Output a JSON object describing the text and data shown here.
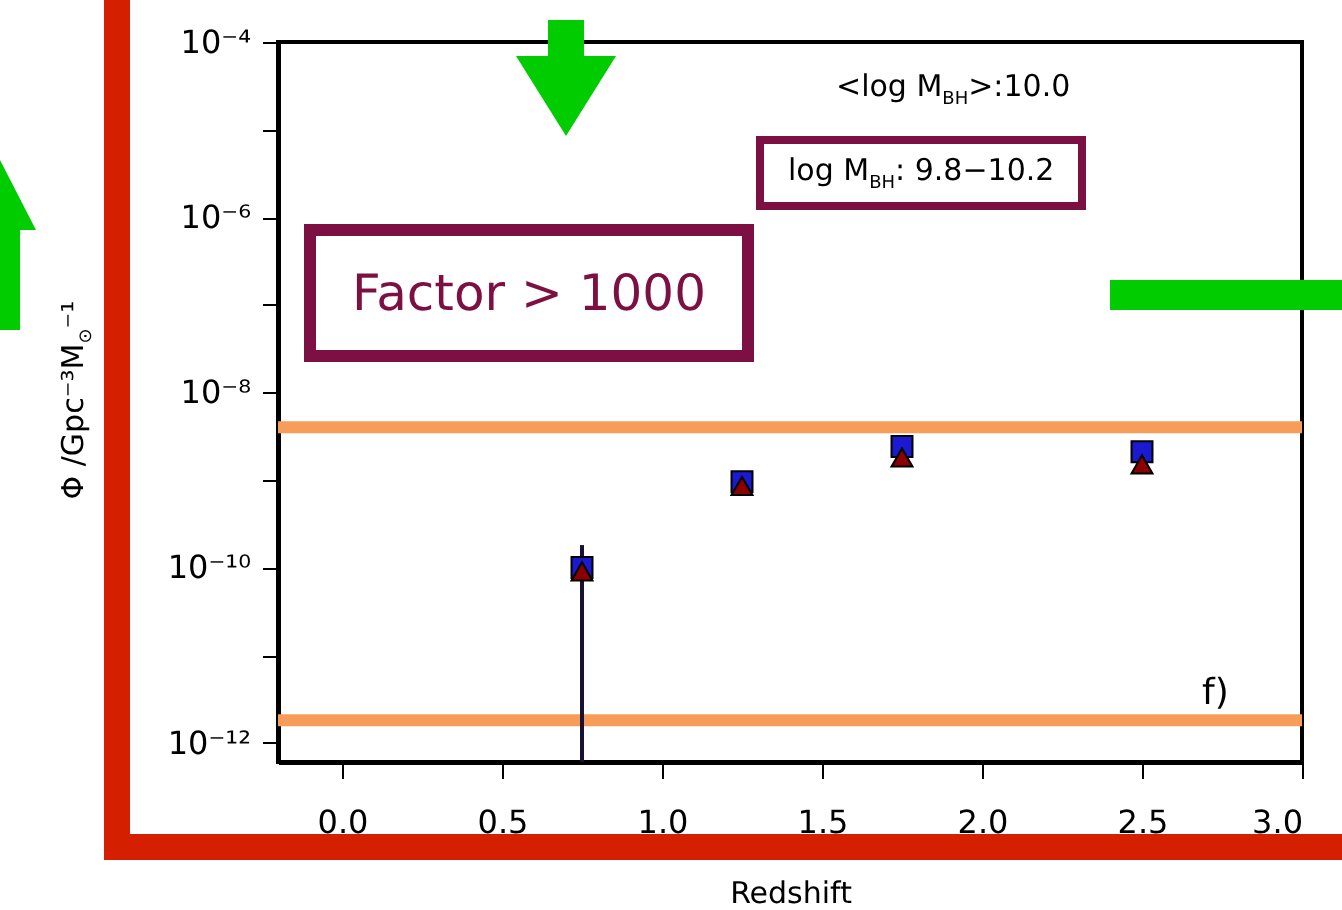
{
  "chart_data": {
    "type": "scatter",
    "xlabel": "Redshift",
    "ylabel": "Φ /Gpc⁻³M$_{⊙}$⁻¹",
    "x": [
      0.75,
      1.25,
      1.75,
      2.5
    ],
    "series": [
      {
        "color": "#1a1ad0",
        "marker": "square",
        "values": [
          1e-10,
          9.5e-10,
          2.4e-09,
          2.1e-09
        ],
        "errors": [
          [
            6e-13,
            1.8e-10
          ],
          null,
          null,
          null
        ]
      },
      {
        "color": "#8b0000",
        "marker": "triangle",
        "values": [
          9e-11,
          8.5e-10,
          1.8e-09,
          1.5e-09
        ]
      }
    ],
    "log": "y",
    "xlim": [
      -0.2,
      3.0
    ],
    "ylim": [
      6e-13,
      0.0001
    ],
    "xticks": [
      {
        "value": 0,
        "label": "0.0"
      },
      {
        "value": 0.5,
        "label": "0.5"
      },
      {
        "value": 1,
        "label": "1.0"
      },
      {
        "value": 1.5,
        "label": "1.5"
      },
      {
        "value": 2,
        "label": "2.0"
      },
      {
        "value": 2.5,
        "label": "2.5"
      },
      {
        "value": 3,
        "label": "3.0"
      }
    ],
    "yticks": [
      {
        "value": 1e-12,
        "label": "10⁻¹²"
      },
      {
        "value": 1e-11,
        "label": null
      },
      {
        "value": 1e-10,
        "label": "10⁻¹⁰"
      },
      {
        "value": 1e-09,
        "label": null
      },
      {
        "value": 1e-08,
        "label": "10⁻⁸"
      },
      {
        "value": 1e-07,
        "label": null
      },
      {
        "value": 1e-06,
        "label": "10⁻⁶"
      },
      {
        "value": 1e-05,
        "label": null
      },
      {
        "value": 0.0001,
        "label": "10⁻⁴"
      }
    ],
    "ref_lines": [
      {
        "axis": "y",
        "value": 4e-09,
        "color": "#f89c5a"
      },
      {
        "axis": "y",
        "value": 1.8e-12,
        "color": "#f89c5a"
      }
    ],
    "annotations": [
      "<log M$_{BH}$>:10.0",
      "log M$_{BH}$: 9.8−10.2",
      "Factor > 1000",
      "f)"
    ]
  }
}
